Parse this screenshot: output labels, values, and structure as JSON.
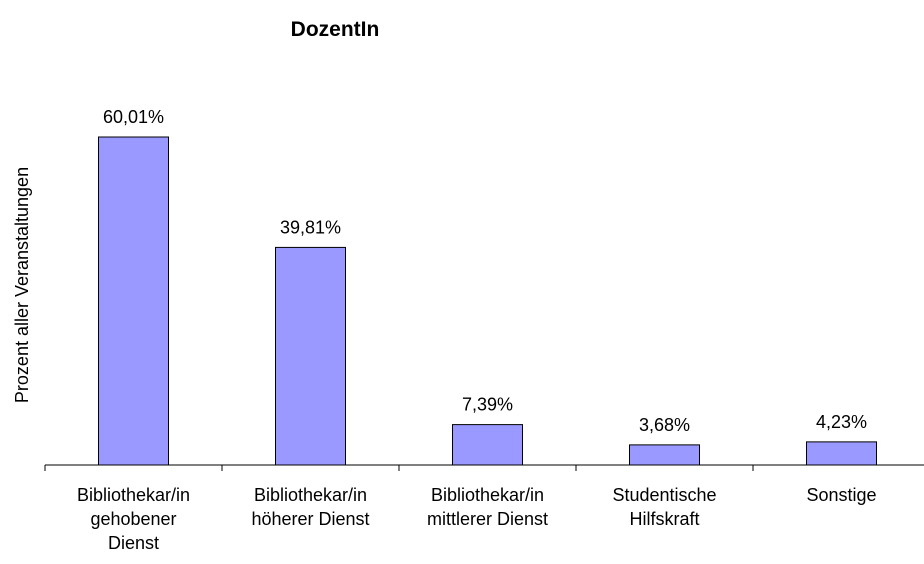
{
  "chart_data": {
    "type": "bar",
    "title": "DozentIn",
    "y_label": "Prozent aller Veranstaltungen",
    "categories": [
      "Bibliothekar/in\ngehobener\nDienst",
      "Bibliothekar/in\nhöherer Dienst",
      "Bibliothekar/in\nmittlerer Dienst",
      "Studentische\nHilfskraft",
      "Sonstige"
    ],
    "values": [
      60.01,
      39.81,
      7.39,
      3.68,
      4.23
    ],
    "value_labels": [
      "60,01%",
      "39,81%",
      "7,39%",
      "3,68%",
      "4,23%"
    ],
    "color": "#9999ff"
  }
}
